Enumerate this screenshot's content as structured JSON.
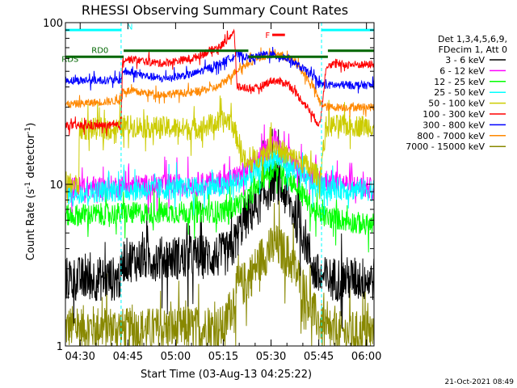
{
  "chart_data": {
    "type": "line",
    "title": "RHESSI Observing Summary Count Rates",
    "xlabel": "Start Time (03-Aug-13 04:25:22)",
    "ylabel_main": "Count Rate (s",
    "ylabel_sup": "-1",
    "ylabel_tail": " detector",
    "ylabel_sup2": "-1",
    "ylabel_close": ")",
    "yscale": "log",
    "ylim": [
      1,
      100
    ],
    "xlim_minutes": [
      0,
      97
    ],
    "x_ticks": [
      {
        "label": "04:30",
        "minute": 4.63
      },
      {
        "label": "04:45",
        "minute": 19.63
      },
      {
        "label": "05:00",
        "minute": 34.63
      },
      {
        "label": "05:15",
        "minute": 49.63
      },
      {
        "label": "05:30",
        "minute": 64.63
      },
      {
        "label": "05:45",
        "minute": 79.63
      },
      {
        "label": "06:00",
        "minute": 94.63
      }
    ],
    "y_ticks": [
      {
        "label": "1",
        "value": 1
      },
      {
        "label": "10",
        "value": 10
      },
      {
        "label": "100",
        "value": 100
      }
    ],
    "legend": {
      "position": "right",
      "header": [
        "Det 1,3,4,5,6,9,",
        "FDecim 1, Att 0"
      ],
      "entries": [
        {
          "label": "3 - 6 keV",
          "color": "#000000"
        },
        {
          "label": "6 - 12 keV",
          "color": "#ff00ff"
        },
        {
          "label": "12 - 25 keV",
          "color": "#00ff00"
        },
        {
          "label": "25 - 50 keV",
          "color": "#00ffff"
        },
        {
          "label": "50 - 100 keV",
          "color": "#cccc00"
        },
        {
          "label": "100 - 300 keV",
          "color": "#ff0000"
        },
        {
          "label": "300 - 800 keV",
          "color": "#0000ff"
        },
        {
          "label": "800 - 7000 keV",
          "color": "#ff8800"
        },
        {
          "label": "7000 - 15000 keV",
          "color": "#888800"
        }
      ]
    },
    "annotations": {
      "flag_labels": [
        {
          "text": "RD0",
          "minute": 8.2,
          "value": 68,
          "color": "#006600"
        },
        {
          "text": "RDS",
          "minute": -1.2,
          "value": 60,
          "color": "#006600"
        },
        {
          "text": "N",
          "minute": 19.3,
          "value": 95,
          "color": "#00ffff"
        },
        {
          "text": "F",
          "minute": 62.8,
          "value": 84,
          "color": "#ff0000"
        }
      ],
      "night_intervals": [
        [
          0,
          17.5
        ],
        [
          80.5,
          97
        ]
      ],
      "flare_interval": [
        65,
        69
      ],
      "rd0_intervals": [
        [
          18.3,
          57.5
        ],
        [
          82.5,
          97
        ]
      ],
      "rds_intervals": [
        [
          0,
          18.3
        ],
        [
          57.5,
          82.5
        ]
      ],
      "timestamp": "21-Oct-2021 08:49"
    },
    "series": [
      {
        "name": "3 - 6 keV",
        "color": "#000000",
        "profile": [
          [
            0,
            2.6
          ],
          [
            17.5,
            2.6
          ],
          [
            18,
            3.4
          ],
          [
            48,
            3.6
          ],
          [
            52,
            3.8
          ],
          [
            56,
            6
          ],
          [
            60,
            7.3
          ],
          [
            66,
            11
          ],
          [
            70,
            8
          ],
          [
            73,
            6
          ],
          [
            76,
            4.2
          ],
          [
            78,
            3
          ],
          [
            80,
            2.6
          ],
          [
            97,
            2.6
          ]
        ]
      },
      {
        "name": "6 - 12 keV",
        "color": "#ff00ff",
        "profile": [
          [
            0,
            9.5
          ],
          [
            18,
            9.7
          ],
          [
            50,
            10.3
          ],
          [
            57,
            12
          ],
          [
            64,
            17
          ],
          [
            66,
            19.5
          ],
          [
            68,
            16
          ],
          [
            73,
            13
          ],
          [
            78,
            11
          ],
          [
            97,
            9.3
          ]
        ]
      },
      {
        "name": "12 - 25 keV",
        "color": "#00ff00",
        "profile": [
          [
            0,
            6.4
          ],
          [
            18,
            6.6
          ],
          [
            50,
            6.8
          ],
          [
            57,
            8
          ],
          [
            63,
            11.5
          ],
          [
            66,
            13
          ],
          [
            70,
            11
          ],
          [
            75,
            8.5
          ],
          [
            79,
            6.5
          ],
          [
            97,
            5.5
          ]
        ]
      },
      {
        "name": "25 - 50 keV",
        "color": "#00ffff",
        "profile": [
          [
            0,
            8.8
          ],
          [
            18,
            9.2
          ],
          [
            50,
            9.6
          ],
          [
            57,
            10.8
          ],
          [
            63,
            13.5
          ],
          [
            66,
            15
          ],
          [
            70,
            13
          ],
          [
            75,
            11
          ],
          [
            79,
            9.5
          ],
          [
            97,
            9.2
          ]
        ]
      },
      {
        "name": "50 - 100 keV",
        "color": "#cccc00",
        "profile": [
          [
            0,
            10
          ],
          [
            4.2,
            10
          ],
          [
            4.4,
            22
          ],
          [
            17.5,
            22
          ],
          [
            18,
            23
          ],
          [
            40,
            22
          ],
          [
            48,
            24
          ],
          [
            52,
            25
          ],
          [
            57,
            13
          ],
          [
            63,
            16
          ],
          [
            66,
            17.5
          ],
          [
            70,
            15
          ],
          [
            75,
            13.5
          ],
          [
            80,
            11
          ],
          [
            82,
            23
          ],
          [
            97,
            23
          ]
        ]
      },
      {
        "name": "100 - 300 keV",
        "color": "#ff0000",
        "profile": [
          [
            0,
            23
          ],
          [
            17.5,
            23
          ],
          [
            18,
            60
          ],
          [
            30,
            56
          ],
          [
            40,
            60
          ],
          [
            49,
            72
          ],
          [
            53,
            88
          ],
          [
            54,
            40
          ],
          [
            60,
            39
          ],
          [
            65,
            44
          ],
          [
            70,
            42
          ],
          [
            76,
            30
          ],
          [
            80,
            23
          ],
          [
            82,
            55
          ],
          [
            97,
            55
          ]
        ]
      },
      {
        "name": "300 - 800 keV",
        "color": "#0000ff",
        "profile": [
          [
            0,
            44
          ],
          [
            17.5,
            44
          ],
          [
            18,
            50
          ],
          [
            30,
            45
          ],
          [
            40,
            48
          ],
          [
            48,
            55
          ],
          [
            54,
            64
          ],
          [
            58,
            60
          ],
          [
            63,
            64
          ],
          [
            70,
            60
          ],
          [
            77,
            48
          ],
          [
            80,
            42
          ],
          [
            82,
            41
          ],
          [
            97,
            41
          ]
        ]
      },
      {
        "name": "800 - 7000 keV",
        "color": "#ff8800",
        "profile": [
          [
            0,
            31
          ],
          [
            17.5,
            33
          ],
          [
            18,
            38
          ],
          [
            30,
            36
          ],
          [
            40,
            37
          ],
          [
            48,
            40
          ],
          [
            54,
            51
          ],
          [
            60,
            60
          ],
          [
            66,
            65
          ],
          [
            72,
            58
          ],
          [
            78,
            40
          ],
          [
            80,
            32
          ],
          [
            82,
            30
          ],
          [
            97,
            30
          ]
        ]
      },
      {
        "name": "7000 - 15000 keV",
        "color": "#888800",
        "profile": [
          [
            0,
            1.3
          ],
          [
            17.5,
            1.3
          ],
          [
            18,
            1.25
          ],
          [
            50,
            1.3
          ],
          [
            54,
            2.3
          ],
          [
            57,
            2.5
          ],
          [
            62,
            3.6
          ],
          [
            66,
            4.2
          ],
          [
            70,
            3.6
          ],
          [
            74,
            2.5
          ],
          [
            78,
            1.6
          ],
          [
            82,
            1.2
          ],
          [
            97,
            1.2
          ]
        ]
      }
    ]
  }
}
